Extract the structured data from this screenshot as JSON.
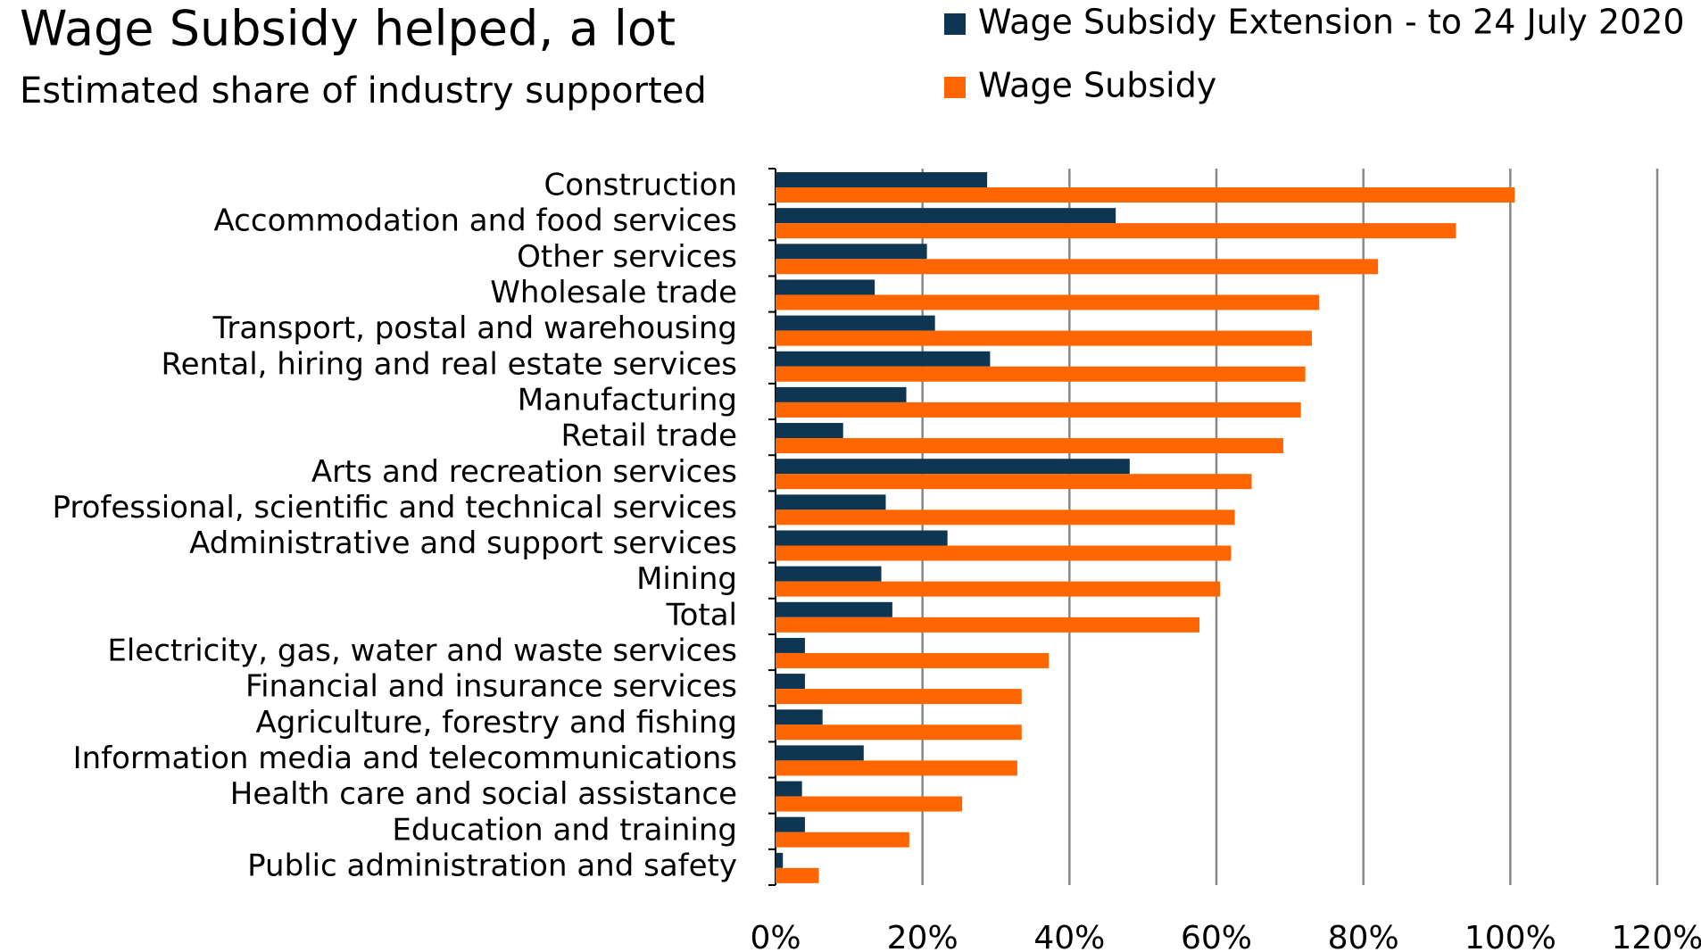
{
  "chart_data": {
    "type": "bar",
    "orientation": "horizontal",
    "title": "Wage Subsidy helped, a lot",
    "subtitle": "Estimated share of industry supported",
    "categories": [
      "Construction",
      "Accommodation and food services",
      "Other services",
      "Wholesale trade",
      "Transport, postal and warehousing",
      "Rental, hiring and real estate services",
      "Manufacturing",
      "Retail trade",
      "Arts and recreation services",
      "Professional, scientific and technical services",
      "Administrative and support services",
      "Mining",
      "Total",
      "Electricity, gas, water and waste services",
      "Financial and insurance services",
      "Agriculture, forestry and fishing",
      "Information media and telecommunications",
      "Health care and social assistance",
      "Education and training",
      "Public administration and safety"
    ],
    "series": [
      {
        "name": "Wage Subsidy Extension -  to 24 July 2020",
        "color": "#0e3552",
        "values": [
          28.8,
          46.3,
          20.6,
          13.5,
          21.7,
          29.2,
          17.8,
          9.2,
          48.2,
          15.0,
          23.4,
          14.4,
          15.9,
          4.0,
          4.0,
          6.4,
          12.0,
          3.6,
          4.0,
          1.0
        ]
      },
      {
        "name": "Wage Subsidy",
        "color": "#ff6600",
        "values": [
          100.6,
          92.6,
          82.0,
          74.0,
          73.0,
          72.1,
          71.5,
          69.1,
          64.8,
          62.5,
          62.0,
          60.5,
          57.7,
          37.2,
          33.5,
          33.5,
          32.9,
          25.4,
          18.2,
          5.9
        ]
      }
    ],
    "xlim": [
      0,
      120
    ],
    "xticks": [
      {
        "value": 0,
        "label": "0%"
      },
      {
        "value": 20,
        "label": "20%"
      },
      {
        "value": 40,
        "label": "40%"
      },
      {
        "value": 60,
        "label": "60%"
      },
      {
        "value": 80,
        "label": "80%"
      },
      {
        "value": 100,
        "label": "100%"
      },
      {
        "value": 120,
        "label": "120%"
      }
    ],
    "grid": true,
    "legend": "top-right"
  }
}
